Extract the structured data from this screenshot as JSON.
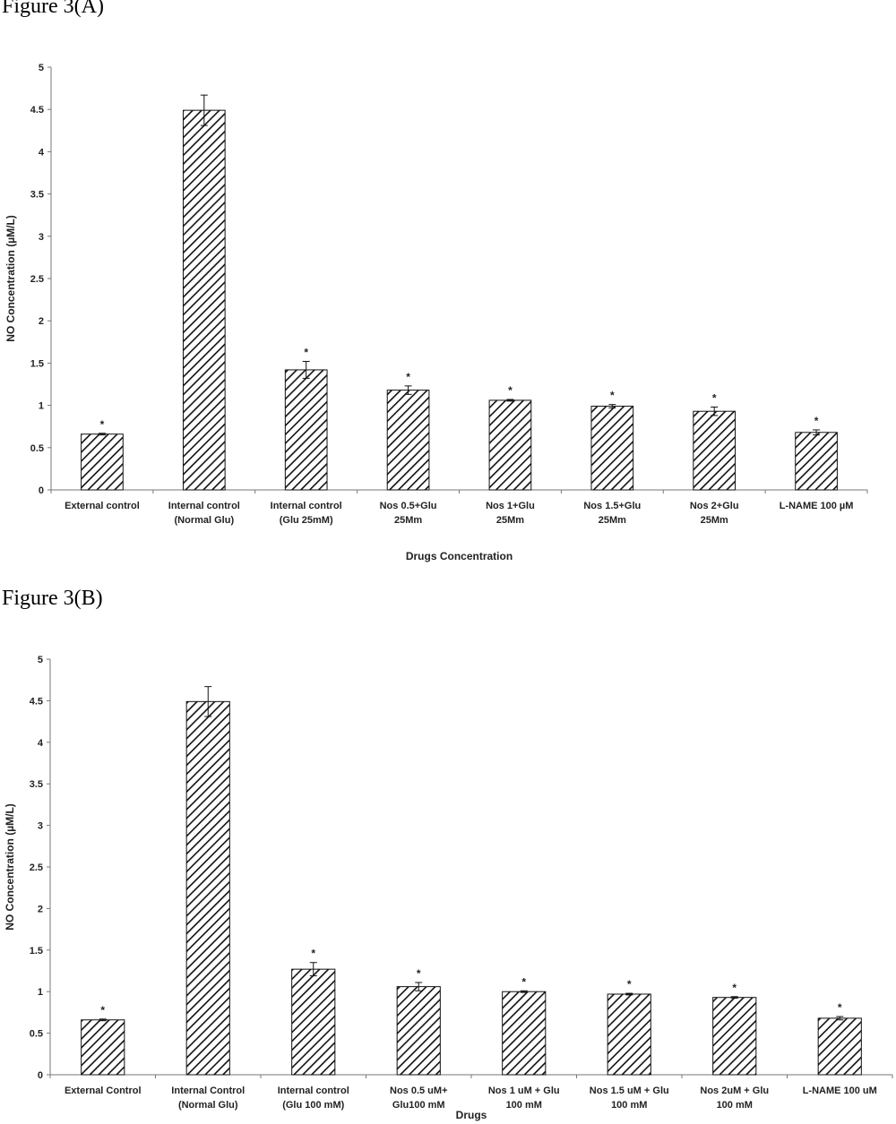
{
  "chart_data": [
    {
      "type": "bar",
      "title": "Figure 3(A)",
      "xlabel": "Drugs  Concentration",
      "ylabel": "NO Concentration (µM/L)",
      "ylim": [
        0,
        5
      ],
      "yticks": [
        "0",
        "0.5",
        "1",
        "1.5",
        "2",
        "2.5",
        "3",
        "3.5",
        "4",
        "4.5",
        "5"
      ],
      "categories": [
        [
          "External control"
        ],
        [
          "Internal control",
          "(Normal Glu)"
        ],
        [
          "Internal control",
          "(Glu 25mM)"
        ],
        [
          "Nos 0.5+Glu",
          "25Mm"
        ],
        [
          "Nos 1+Glu",
          "25Mm"
        ],
        [
          "Nos 1.5+Glu",
          "25Mm"
        ],
        [
          "Nos 2+Glu",
          "25Mm"
        ],
        [
          "L-NAME 100 µM"
        ]
      ],
      "values": [
        0.66,
        4.49,
        1.42,
        1.18,
        1.06,
        0.99,
        0.93,
        0.68
      ],
      "errors": [
        0.01,
        0.18,
        0.1,
        0.05,
        0.01,
        0.02,
        0.05,
        0.03
      ],
      "annotations": [
        "*",
        "",
        "*",
        "*",
        "*",
        "*",
        "*",
        "*"
      ],
      "fill": "diagonal-hatch",
      "grid": false
    },
    {
      "type": "bar",
      "title": "Figure 3(B)",
      "xlabel": "Drugs",
      "ylabel": "NO Concentration (µM/L)",
      "ylim": [
        0,
        5
      ],
      "yticks": [
        "0",
        "0.5",
        "1",
        "1.5",
        "2",
        "2.5",
        "3",
        "3.5",
        "4",
        "4.5",
        "5"
      ],
      "categories": [
        [
          "External Control"
        ],
        [
          "Internal Control",
          "(Normal Glu)"
        ],
        [
          "Internal control",
          "(Glu 100 mM)"
        ],
        [
          "Nos 0.5 uM+",
          "Glu100 mM"
        ],
        [
          "Nos 1 uM + Glu",
          "100 mM"
        ],
        [
          "Nos 1.5 uM + Glu",
          "100 mM"
        ],
        [
          "Nos 2uM + Glu",
          "100 mM"
        ],
        [
          "L-NAME 100 uM"
        ]
      ],
      "values": [
        0.66,
        4.49,
        1.27,
        1.06,
        1.0,
        0.97,
        0.93,
        0.68
      ],
      "errors": [
        0.01,
        0.18,
        0.08,
        0.05,
        0.01,
        0.01,
        0.01,
        0.02
      ],
      "annotations": [
        "*",
        "",
        "*",
        "*",
        "*",
        "*",
        "*",
        "*"
      ],
      "fill": "diagonal-hatch",
      "grid": false
    }
  ]
}
